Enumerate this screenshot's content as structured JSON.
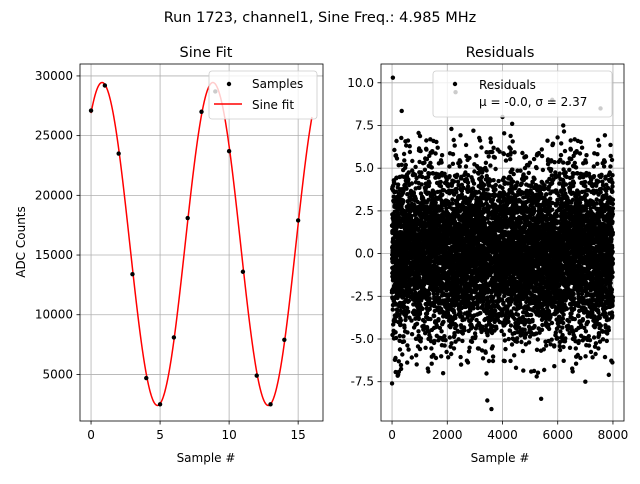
{
  "figure": {
    "suptitle": "Run 1723, channel1, Sine Freq.: 4.985 MHz"
  },
  "chart_data": [
    {
      "type": "scatter",
      "title": "Sine Fit",
      "xlabel": "Sample #",
      "ylabel": "ADC Counts",
      "xlim": [
        -0.8,
        16.8
      ],
      "ylim": [
        1100,
        31000
      ],
      "grid": true,
      "legend_position": "top-right",
      "x_ticks": [
        0,
        5,
        10,
        15
      ],
      "y_ticks": [
        5000,
        10000,
        15000,
        20000,
        25000,
        30000
      ],
      "series": [
        {
          "name": "Samples",
          "style": "points",
          "color": "#000000",
          "x": [
            0,
            1,
            2,
            3,
            4,
            5,
            6,
            7,
            8,
            9,
            10,
            11,
            12,
            13,
            14,
            15
          ],
          "y": [
            27100,
            29200,
            23500,
            13400,
            4700,
            2500,
            8100,
            18100,
            27000,
            28700,
            23700,
            13600,
            4900,
            2500,
            7900,
            17900
          ]
        },
        {
          "name": "Sine fit",
          "style": "line",
          "color": "#ff0000",
          "x_range": [
            0,
            16
          ],
          "model": {
            "offset": 15925,
            "amplitude": 13525,
            "period": 8.025,
            "phase_at_peak": 0.8
          }
        }
      ]
    },
    {
      "type": "scatter",
      "title": "Residuals",
      "xlabel": "Sample #",
      "ylabel": "",
      "xlim": [
        -400,
        8400
      ],
      "ylim": [
        -9.8,
        11.1
      ],
      "grid": true,
      "legend_position": "top-right",
      "x_ticks": [
        0,
        2000,
        4000,
        6000,
        8000
      ],
      "y_ticks": [
        -7.5,
        -5.0,
        -2.5,
        0.0,
        2.5,
        5.0,
        7.5,
        10.0
      ],
      "legend": {
        "line1": "Residuals",
        "line2": "μ = -0.0, σ = 2.37"
      },
      "series": [
        {
          "name": "Residuals",
          "color": "#000000",
          "n_points": 8000,
          "x_range": [
            0,
            7999
          ],
          "mean": 0.0,
          "std": 2.37,
          "highlighted_points": [
            {
              "x": 30,
              "y": 10.3
            },
            {
              "x": 2300,
              "y": 9.45
            },
            {
              "x": 5800,
              "y": 9.0
            },
            {
              "x": 7550,
              "y": 8.5
            },
            {
              "x": 4000,
              "y": 8.0
            },
            {
              "x": 350,
              "y": 8.35
            },
            {
              "x": 2150,
              "y": 7.3
            },
            {
              "x": 4350,
              "y": 7.6
            },
            {
              "x": 6200,
              "y": 7.5
            },
            {
              "x": 3600,
              "y": -9.1
            },
            {
              "x": 3450,
              "y": -8.6
            },
            {
              "x": 5400,
              "y": -8.5
            },
            {
              "x": 0,
              "y": -7.6
            },
            {
              "x": 7000,
              "y": -7.5
            },
            {
              "x": 1850,
              "y": -7.0
            },
            {
              "x": 7850,
              "y": -7.1
            },
            {
              "x": 2500,
              "y": -6.5
            }
          ]
        }
      ]
    }
  ]
}
